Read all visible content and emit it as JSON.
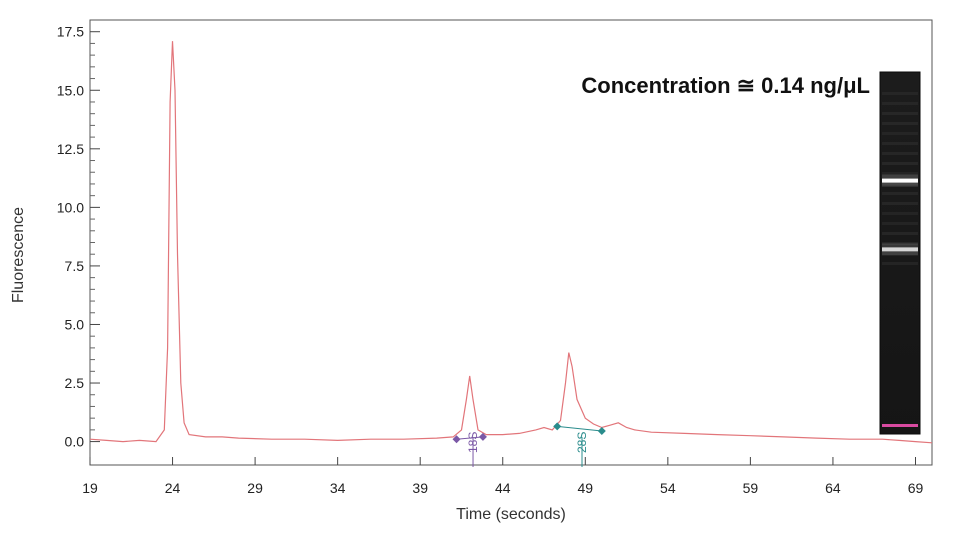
{
  "chart_data": {
    "type": "line",
    "xlabel": "Time (seconds)",
    "ylabel": "Fluorescence",
    "xlim": [
      19,
      70
    ],
    "ylim": [
      -1,
      18
    ],
    "x_ticks": [
      19,
      24,
      29,
      34,
      39,
      44,
      49,
      54,
      59,
      64,
      69
    ],
    "y_ticks": [
      0.0,
      2.5,
      5.0,
      7.5,
      10.0,
      12.5,
      15.0,
      17.5
    ],
    "x_tick_labels": [
      "19",
      "24",
      "29",
      "34",
      "39",
      "44",
      "49",
      "54",
      "59",
      "64",
      "69"
    ],
    "y_tick_labels": [
      "0.0",
      "2.5",
      "5.0",
      "7.5",
      "10.0",
      "12.5",
      "15.0",
      "17.5"
    ],
    "grid": false,
    "series": [
      {
        "color": "#e2757a",
        "x": [
          19,
          20,
          21,
          22,
          23,
          23.5,
          23.7,
          23.85,
          24.0,
          24.15,
          24.3,
          24.5,
          24.7,
          25,
          26,
          27,
          28,
          30,
          32,
          34,
          36,
          38,
          40,
          41,
          41.5,
          41.8,
          42.0,
          42.2,
          42.5,
          43,
          44,
          45,
          46,
          46.5,
          47,
          47.5,
          47.8,
          48.0,
          48.2,
          48.5,
          49,
          49.5,
          50,
          50.5,
          51,
          51.5,
          52,
          53,
          55,
          57,
          59,
          61,
          63,
          65,
          67,
          68,
          69,
          70
        ],
        "y": [
          0.1,
          0.05,
          0.0,
          0.05,
          0.0,
          0.5,
          4.0,
          14.5,
          17.1,
          15.0,
          8.0,
          2.5,
          0.8,
          0.3,
          0.2,
          0.2,
          0.15,
          0.1,
          0.1,
          0.05,
          0.1,
          0.1,
          0.15,
          0.2,
          0.5,
          1.8,
          2.8,
          1.8,
          0.5,
          0.3,
          0.3,
          0.35,
          0.5,
          0.6,
          0.5,
          0.9,
          2.5,
          3.8,
          3.2,
          1.8,
          1.0,
          0.75,
          0.6,
          0.7,
          0.8,
          0.6,
          0.5,
          0.4,
          0.35,
          0.3,
          0.25,
          0.2,
          0.15,
          0.1,
          0.1,
          0.05,
          0.0,
          -0.05
        ]
      }
    ],
    "annotations": [
      {
        "label": "18S",
        "color": "#7b58a6",
        "x": 42.2,
        "markers": [
          [
            41.2,
            0.1
          ],
          [
            42.8,
            0.2
          ]
        ]
      },
      {
        "label": "28S",
        "color": "#2a8c8c",
        "x": 48.8,
        "markers": [
          [
            47.3,
            0.65
          ],
          [
            50.0,
            0.45
          ]
        ]
      }
    ],
    "concentration_label": "Concentration ≅ 0.14 ng/μL",
    "gel_bands": [
      {
        "pos": 0.3,
        "intensity": 1.0
      },
      {
        "pos": 0.49,
        "intensity": 0.8
      }
    ]
  }
}
